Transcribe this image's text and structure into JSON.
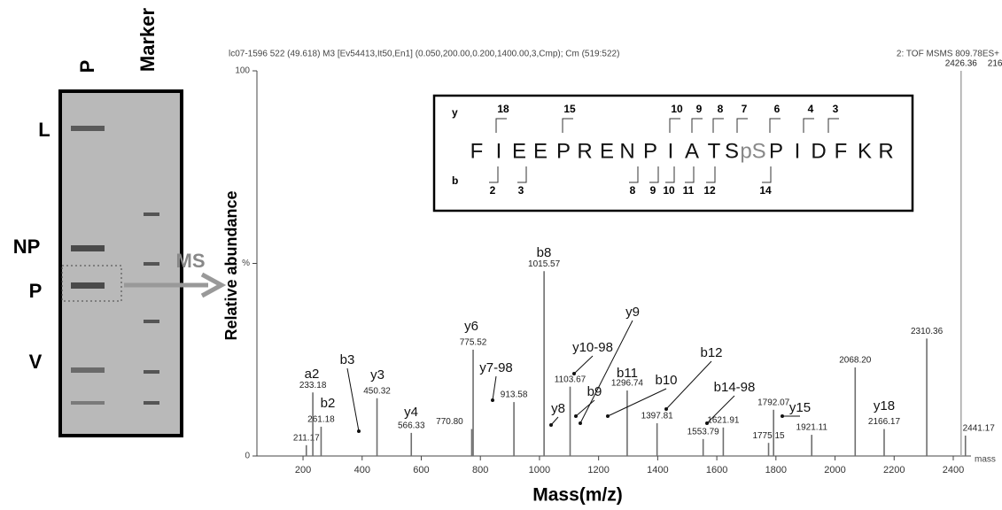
{
  "gel": {
    "lanes": [
      "P",
      "Marker"
    ],
    "bands": [
      "L",
      "NP",
      "P",
      "V"
    ],
    "arrow_label": "MS"
  },
  "chart_data": {
    "type": "bar",
    "header_left": "lc07-1596 522 (49.618) M3 [Ev54413,It50,En1] (0.050,200.00,0.200,1400.00,3,Cmp); Cm (519:522)",
    "header_right": "2: TOF MSMS 809.78ES+",
    "peak_extra": "216",
    "ylabel": "Relative abundance",
    "xlabel": "Mass(m/z)",
    "x_unit": "mass",
    "x": [
      211.17,
      233.18,
      261.18,
      450.32,
      566.33,
      770.8,
      775.52,
      913.58,
      1015.57,
      1103.67,
      1296.74,
      1397.81,
      1553.79,
      1621.91,
      1775.15,
      1792.07,
      1921.11,
      2068.2,
      2166.17,
      2310.36,
      2426.36,
      2441.17
    ],
    "x_labels": [
      "211.17",
      "233.18",
      "261.18",
      "450.32",
      "566.33",
      "770.80",
      "775.52",
      "913.58",
      "1015.57",
      "1103.67",
      "1296.74",
      "1397.81",
      "1553.79",
      "1621.91",
      "1775.15",
      "1792.07",
      "1921.11",
      "2068.20",
      "2166.17",
      "2310.36",
      "2426.36",
      "2441.17"
    ],
    "values": [
      2.8,
      16.5,
      7.6,
      15,
      6,
      7,
      27.6,
      14,
      48,
      18,
      17,
      8.5,
      4.4,
      7.4,
      3.4,
      12,
      5.5,
      23,
      7,
      30.5,
      100,
      5.3
    ],
    "color": "#6e6e6e",
    "xlim": [
      50,
      2460
    ],
    "ylim": [
      0,
      100
    ],
    "xticks": [
      200,
      400,
      600,
      800,
      1000,
      1200,
      1400,
      1600,
      1800,
      2000,
      2200,
      2400
    ],
    "yticks": [
      0,
      {
        "value": 50,
        "label": "%"
      },
      100
    ],
    "annotations": [
      "a2",
      "b2",
      "b3",
      "y3",
      "y4",
      "y6",
      "y7-98",
      "b8",
      "y10-98",
      "y9",
      "y8",
      "b9",
      "b11",
      "b10",
      "b12",
      "b14-98",
      "y15",
      "y18"
    ],
    "inset": {
      "residues": [
        "F",
        "I",
        "E",
        "E",
        "P",
        "R",
        "E",
        "N",
        "P",
        "I",
        "A",
        "T",
        "S",
        "pS",
        "P",
        "I",
        "D",
        "F",
        "K",
        "R"
      ],
      "y_row": "y",
      "y_ions": [
        "18",
        "15",
        "10",
        "9",
        "8",
        "7",
        "6",
        "4",
        "3"
      ],
      "b_row": "b",
      "b_ions": [
        "2",
        "3",
        "8",
        "9",
        "10",
        "11",
        "12",
        "14"
      ]
    }
  }
}
